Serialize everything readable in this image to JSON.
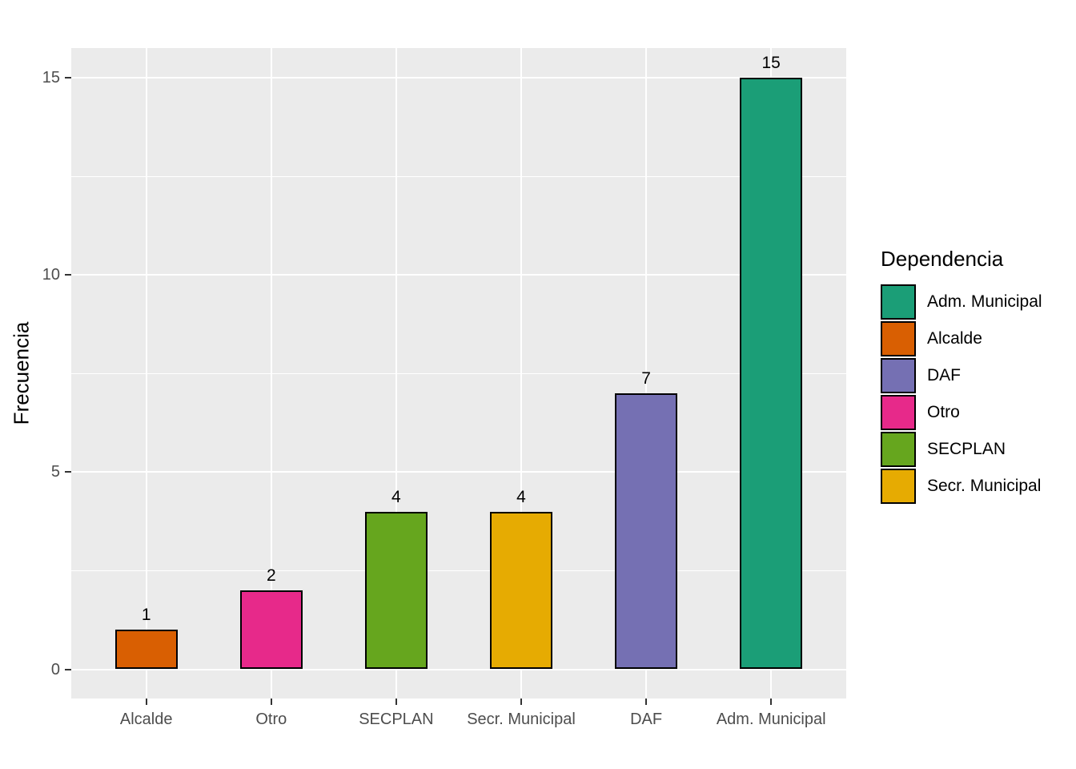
{
  "chart_data": {
    "type": "bar",
    "title": "",
    "xlabel": "",
    "ylabel": "Frecuencia",
    "categories": [
      "Alcalde",
      "Otro",
      "SECPLAN",
      "Secr. Municipal",
      "DAF",
      "Adm. Municipal"
    ],
    "values": [
      1,
      2,
      4,
      4,
      7,
      15
    ],
    "value_labels": [
      "1",
      "2",
      "4",
      "4",
      "7",
      "15"
    ],
    "bar_colors": [
      "#D95F02",
      "#E7298A",
      "#66A61E",
      "#E6AB02",
      "#7570B3",
      "#1B9E77"
    ],
    "yticks": [
      0,
      5,
      10,
      15
    ],
    "ytick_labels": [
      "0",
      "5",
      "10",
      "15"
    ],
    "yminor": [
      2.5,
      7.5,
      12.5
    ],
    "ylim": [
      -0.75,
      15.75
    ],
    "grid": true,
    "panel_bg": "#EBEBEB",
    "gridline_color": "#FFFFFF",
    "bar_border_color": "#000000",
    "legend": {
      "title": "Dependencia",
      "position": "right",
      "entries": [
        {
          "label": "Adm. Municipal",
          "color": "#1B9E77"
        },
        {
          "label": "Alcalde",
          "color": "#D95F02"
        },
        {
          "label": "DAF",
          "color": "#7570B3"
        },
        {
          "label": "Otro",
          "color": "#E7298A"
        },
        {
          "label": "SECPLAN",
          "color": "#66A61E"
        },
        {
          "label": "Secr. Municipal",
          "color": "#E6AB02"
        }
      ]
    }
  }
}
